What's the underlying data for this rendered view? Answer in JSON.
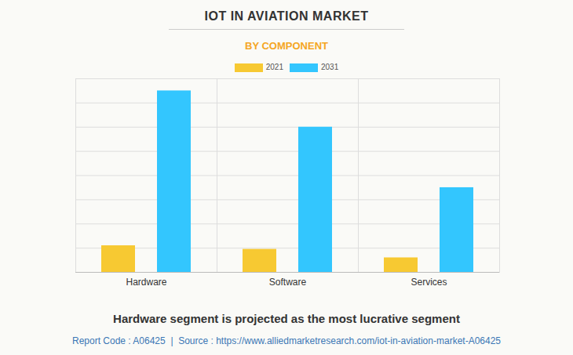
{
  "chart_data": {
    "type": "bar",
    "title": "IOT IN AVIATION MARKET",
    "subtitle": "BY COMPONENT",
    "caption": "Hardware segment is projected as the most lucrative segment",
    "source": "Report Code : A06425  |  Source : https://www.alliedmarketresearch.com/iot-in-aviation-market-A06425",
    "categories": [
      "Hardware",
      "Software",
      "Services"
    ],
    "series": [
      {
        "name": "2021",
        "color": "#f7c932",
        "values": [
          1.1,
          0.95,
          0.6
        ]
      },
      {
        "name": "2031",
        "color": "#33c6fe",
        "values": [
          7.5,
          6.0,
          3.5
        ]
      }
    ],
    "ylim": [
      0,
      8
    ],
    "yticks": [
      0,
      1,
      2,
      3,
      4,
      5,
      6,
      7,
      8
    ],
    "grid": true,
    "legend": "top",
    "tick_labels": "x"
  }
}
